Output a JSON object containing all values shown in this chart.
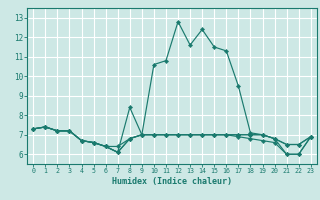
{
  "title": "",
  "xlabel": "Humidex (Indice chaleur)",
  "ylabel": "",
  "background_color": "#cde8e5",
  "grid_color": "#ffffff",
  "line_color": "#1a7a6e",
  "xlim": [
    -0.5,
    23.5
  ],
  "ylim": [
    5.5,
    13.5
  ],
  "xticks": [
    0,
    1,
    2,
    3,
    4,
    5,
    6,
    7,
    8,
    9,
    10,
    11,
    12,
    13,
    14,
    15,
    16,
    17,
    18,
    19,
    20,
    21,
    22,
    23
  ],
  "yticks": [
    6,
    7,
    8,
    9,
    10,
    11,
    12,
    13
  ],
  "series": [
    [
      7.3,
      7.4,
      7.2,
      7.2,
      6.7,
      6.6,
      6.4,
      6.4,
      6.8,
      7.0,
      10.6,
      10.8,
      12.8,
      11.6,
      12.4,
      11.5,
      11.3,
      9.5,
      7.1,
      7.0,
      6.8,
      6.0,
      6.0,
      6.9
    ],
    [
      7.3,
      7.4,
      7.2,
      7.2,
      6.7,
      6.6,
      6.4,
      6.1,
      6.8,
      7.0,
      7.0,
      7.0,
      7.0,
      7.0,
      7.0,
      7.0,
      7.0,
      7.0,
      7.0,
      7.0,
      6.8,
      6.5,
      6.5,
      6.9
    ],
    [
      7.3,
      7.4,
      7.2,
      7.2,
      6.7,
      6.6,
      6.4,
      6.1,
      6.8,
      7.0,
      7.0,
      7.0,
      7.0,
      7.0,
      7.0,
      7.0,
      7.0,
      6.9,
      6.8,
      6.7,
      6.6,
      6.0,
      6.0,
      6.9
    ],
    [
      7.3,
      7.4,
      7.2,
      7.2,
      6.7,
      6.6,
      6.4,
      6.1,
      8.4,
      7.0,
      7.0,
      7.0,
      7.0,
      7.0,
      7.0,
      7.0,
      7.0,
      7.0,
      7.0,
      7.0,
      6.8,
      6.5,
      6.5,
      6.9
    ]
  ]
}
